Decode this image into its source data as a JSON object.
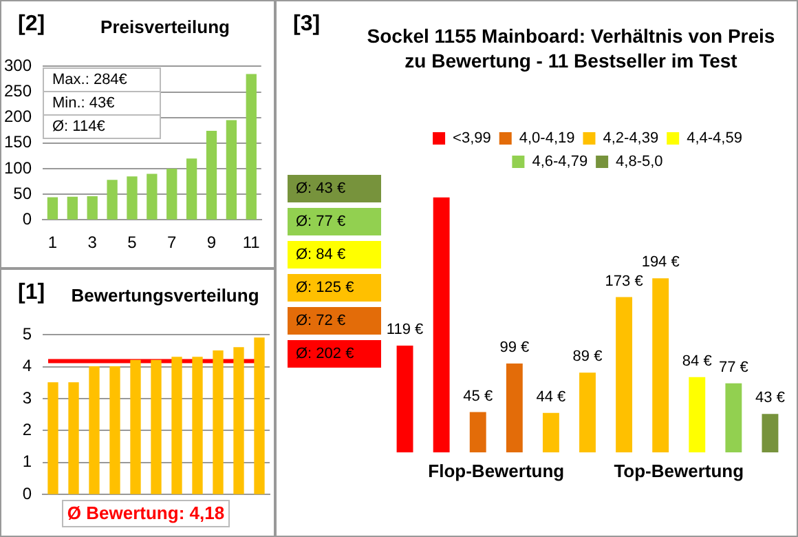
{
  "chart_data": [
    {
      "type": "bar",
      "title": "Preisverteilung",
      "categories": [
        "1",
        null,
        "3",
        null,
        "5",
        null,
        "7",
        null,
        "9",
        null,
        "11"
      ],
      "values": [
        43,
        44,
        45,
        77,
        84,
        89,
        99,
        119,
        173,
        194,
        284
      ],
      "color": "#92d050",
      "ylim": [
        0,
        300
      ],
      "yticks": [
        0,
        50,
        100,
        150,
        200,
        250,
        300
      ],
      "grid": "y",
      "annotations": [
        "[2]",
        "Max.: 284€",
        "Min.: 43€",
        "Ø: 114€"
      ]
    },
    {
      "type": "bar",
      "title": "Bewertungsverteilung",
      "categories": [
        null,
        null,
        null,
        null,
        null,
        null,
        null,
        null,
        null,
        null,
        null
      ],
      "values": [
        3.5,
        3.5,
        4.0,
        4.0,
        4.2,
        4.2,
        4.3,
        4.3,
        4.5,
        4.6,
        4.9
      ],
      "color": "#ffc000",
      "ylim": [
        0,
        5
      ],
      "yticks": [
        0,
        1,
        2,
        3,
        4,
        5
      ],
      "grid": "y",
      "tick_labels": "y",
      "ref_lines": [
        {
          "axis": "y",
          "value": 4.18,
          "label": "Ø Bewertung: 4,18",
          "color": "#ff0000"
        }
      ],
      "annotations": [
        "[1]"
      ]
    },
    {
      "type": "bar",
      "title": "Sockel 1155 Mainboard: Verhältnis von Preis zu Bewertung - 11 Bestseller im Test",
      "categories": [
        null,
        null,
        null,
        null,
        null,
        null,
        null,
        null,
        null,
        null,
        null
      ],
      "stacked": true,
      "legend": "top",
      "series": [
        {
          "name": "<3,99",
          "color": "#ff0000",
          "values": [
            119,
            284,
            null,
            null,
            null,
            null,
            null,
            null,
            null,
            null,
            null
          ],
          "value_labels": [
            "119 €",
            null,
            null,
            null,
            null,
            null,
            null,
            null,
            null,
            null,
            null
          ]
        },
        {
          "name": "4,0-4,19",
          "color": "#e36c09",
          "values": [
            null,
            null,
            45,
            99,
            null,
            null,
            null,
            null,
            null,
            null,
            null
          ],
          "value_labels": [
            null,
            null,
            "45 €",
            "99 €",
            null,
            null,
            null,
            null,
            null,
            null,
            null
          ]
        },
        {
          "name": "4,2-4,39",
          "color": "#ffc000",
          "values": [
            null,
            null,
            null,
            null,
            44,
            89,
            173,
            194,
            null,
            null,
            null
          ],
          "value_labels": [
            null,
            null,
            null,
            null,
            "44 €",
            "89 €",
            "173 €",
            "194 €",
            null,
            null,
            null
          ]
        },
        {
          "name": "4,4-4,59",
          "color": "#ffff00",
          "values": [
            null,
            null,
            null,
            null,
            null,
            null,
            null,
            null,
            84,
            null,
            null
          ],
          "value_labels": [
            null,
            null,
            null,
            null,
            null,
            null,
            null,
            null,
            "84 €",
            null,
            null
          ]
        },
        {
          "name": "4,6-4,79",
          "color": "#92d050",
          "values": [
            null,
            null,
            null,
            null,
            null,
            null,
            null,
            null,
            null,
            77,
            null
          ],
          "value_labels": [
            null,
            null,
            null,
            null,
            null,
            null,
            null,
            null,
            null,
            "77 €",
            null
          ]
        },
        {
          "name": "4,8-5,0",
          "color": "#77933c",
          "values": [
            null,
            null,
            null,
            null,
            null,
            null,
            null,
            null,
            null,
            null,
            43
          ],
          "value_labels": [
            null,
            null,
            null,
            null,
            null,
            null,
            null,
            null,
            null,
            null,
            "43 €"
          ]
        }
      ],
      "annotations": [
        "[3]",
        "Ø: 43 €",
        "Ø: 77 €",
        "Ø: 84 €",
        "Ø: 125 €",
        "Ø: 72 €",
        "Ø: 202 €",
        "Flop-Bewertung",
        "Top-Bewertung"
      ]
    }
  ]
}
